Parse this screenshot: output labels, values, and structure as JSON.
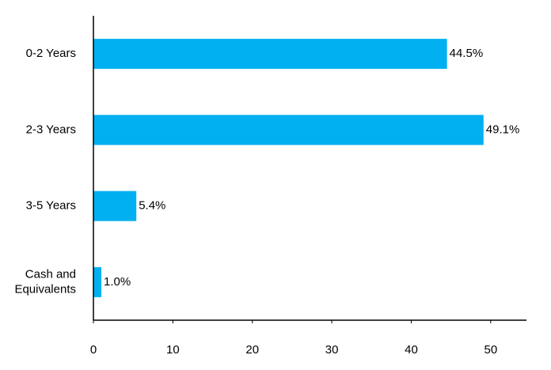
{
  "chart_data": {
    "type": "bar",
    "orientation": "horizontal",
    "categories": [
      "0-2 Years",
      "2-3 Years",
      "3-5 Years",
      "Cash and Equivalents"
    ],
    "category_label_lines": [
      [
        "0-2 Years"
      ],
      [
        "2-3 Years"
      ],
      [
        "3-5 Years"
      ],
      [
        "Cash and",
        "Equivalents"
      ]
    ],
    "values": [
      44.5,
      49.1,
      5.4,
      1.0
    ],
    "data_labels": [
      "44.5%",
      "49.1%",
      "5.4%",
      "1.0%"
    ],
    "xticks": [
      0,
      10,
      20,
      30,
      40,
      50
    ],
    "xlim": [
      0,
      54.5
    ],
    "title": "",
    "xlabel": "",
    "ylabel": "",
    "grid": false,
    "legend": "none",
    "bar_color": "#00B0F0"
  }
}
